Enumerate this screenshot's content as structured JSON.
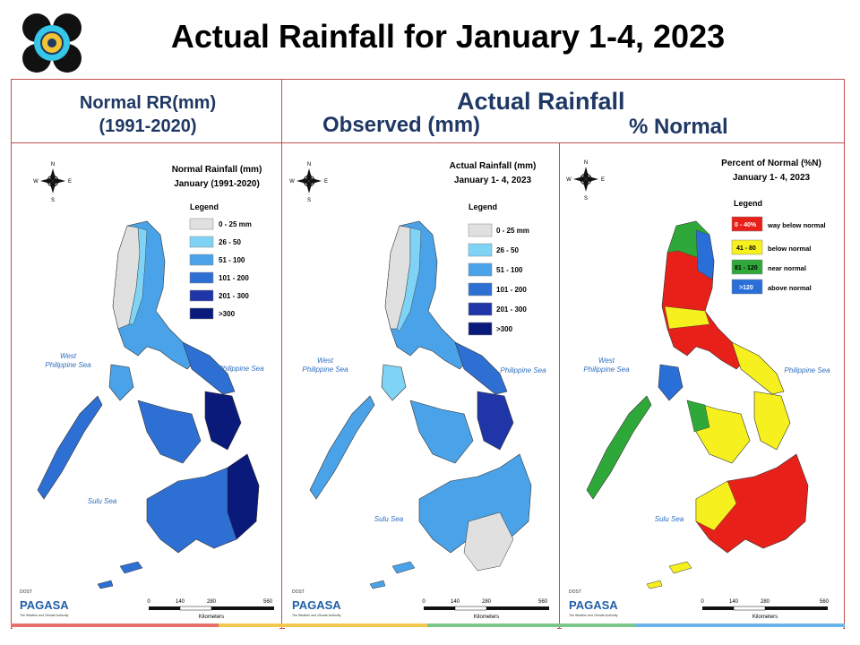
{
  "title": "Actual Rainfall for January 1-4, 2023",
  "headers": {
    "normal_line1": "Normal RR(mm)",
    "normal_line2": "(1991-2020)",
    "actual": "Actual Rainfall",
    "observed": "Observed (mm)",
    "percent": "% Normal"
  },
  "compass": {
    "n": "N",
    "s": "S",
    "e": "E",
    "w": "W"
  },
  "seas": {
    "west_line1": "West",
    "west_line2": "Philippine Sea",
    "phil_sea": "Philippine Sea",
    "sulu": "Sulu Sea"
  },
  "scale": {
    "ticks": [
      "0",
      "140",
      "280",
      "560"
    ],
    "unit": "Kilometers"
  },
  "branding": {
    "dost": "DOST",
    "pagasa": "PAGASA",
    "tagline": "The Weather and Climate Authority"
  },
  "panels": [
    {
      "map_title_1": "Normal Rainfall (mm)",
      "map_title_2": "January (1991-2020)",
      "legend_title": "Legend",
      "legend": [
        {
          "label": "0 - 25 mm",
          "color": "#e0e0e0"
        },
        {
          "label": "26 - 50",
          "color": "#7fd3f5"
        },
        {
          "label": "51 - 100",
          "color": "#4aa3e8"
        },
        {
          "label": "101 - 200",
          "color": "#2e6fd4"
        },
        {
          "label": "201 - 300",
          "color": "#2036a8"
        },
        {
          "label": ">300",
          "color": "#0a1a7a"
        }
      ]
    },
    {
      "map_title_1": "Actual Rainfall (mm)",
      "map_title_2": "January 1- 4, 2023",
      "legend_title": "Legend",
      "legend": [
        {
          "label": "0 - 25 mm",
          "color": "#e0e0e0"
        },
        {
          "label": "26 - 50",
          "color": "#7fd3f5"
        },
        {
          "label": "51 - 100",
          "color": "#4aa3e8"
        },
        {
          "label": "101 - 200",
          "color": "#2e6fd4"
        },
        {
          "label": "201 - 300",
          "color": "#2036a8"
        },
        {
          "label": ">300",
          "color": "#0a1a7a"
        }
      ]
    },
    {
      "map_title_1": "Percent of Normal (%N)",
      "map_title_2": "January 1- 4, 2023",
      "legend_title": "Legend",
      "legend": [
        {
          "label": "0 - 40%",
          "desc": "way below normal",
          "color": "#e8201a"
        },
        {
          "label": "41 - 80",
          "desc": "below normal",
          "color": "#f5f01e"
        },
        {
          "label": "81 - 120",
          "desc": "near normal",
          "color": "#2fa83a"
        },
        {
          "label": ">120",
          "desc": "above normal",
          "color": "#2a6fd8"
        }
      ]
    }
  ],
  "colors": {
    "frame": "#c0504d",
    "header_text": "#1f3864",
    "sea_label": "#2f6fbf",
    "strip": [
      "#e8706a",
      "#f2c94c",
      "#7cc68a",
      "#6cb4e8"
    ]
  }
}
